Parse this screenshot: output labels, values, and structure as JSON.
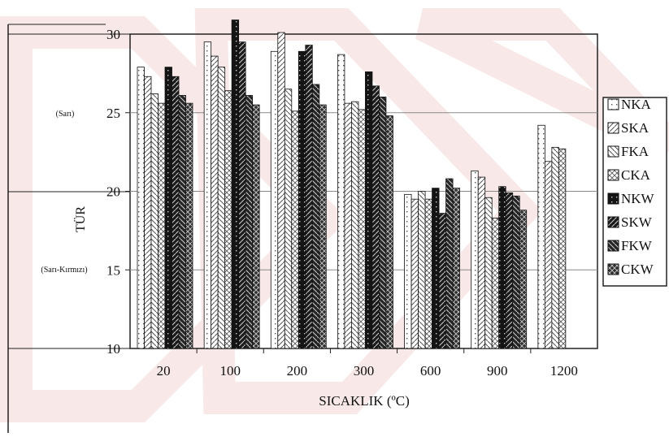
{
  "chart_data": {
    "type": "bar",
    "xlabel": "SICAKLIK (ºC)",
    "ylabel": "TÜR",
    "ylim": [
      10,
      30
    ],
    "yticks": [
      "10",
      "15",
      "20",
      "25",
      "30"
    ],
    "categories": [
      "20",
      "100",
      "200",
      "300",
      "600",
      "900",
      "1200"
    ],
    "side_labels": [
      "(Sarı)",
      "(Sarı-Kırmızı)"
    ],
    "grid": true,
    "legend_position": "right",
    "series": [
      {
        "name": "NKA",
        "values": [
          27.9,
          29.5,
          28.9,
          28.7,
          19.8,
          21.3,
          24.2
        ]
      },
      {
        "name": "SKA",
        "values": [
          27.3,
          28.6,
          30.1,
          25.6,
          19.5,
          20.9,
          21.9
        ]
      },
      {
        "name": "FKA",
        "values": [
          26.2,
          27.9,
          26.5,
          25.7,
          20.0,
          19.6,
          22.8
        ]
      },
      {
        "name": "CKA",
        "values": [
          25.6,
          26.4,
          25.1,
          25.2,
          19.5,
          18.3,
          22.7
        ]
      },
      {
        "name": "NKW",
        "values": [
          27.9,
          30.9,
          28.9,
          27.6,
          20.2,
          20.3,
          null
        ]
      },
      {
        "name": "SKW",
        "values": [
          27.3,
          29.5,
          29.3,
          26.7,
          18.6,
          19.9,
          null
        ]
      },
      {
        "name": "FKW",
        "values": [
          26.1,
          26.1,
          26.8,
          26.0,
          20.8,
          19.7,
          null
        ]
      },
      {
        "name": "CKW",
        "values": [
          25.6,
          25.5,
          25.5,
          24.8,
          20.2,
          18.8,
          null
        ]
      }
    ],
    "styles": {
      "fills": [
        "#ffffff",
        "#ffffff",
        "#ffffff",
        "#ffffff",
        "#141414",
        "#1c1c1c",
        "#262626",
        "#303030"
      ],
      "pattern_color_light": "#555555",
      "pattern_color_dark": "#cfcfcf",
      "watermark_color": "#f3d6d6"
    }
  }
}
